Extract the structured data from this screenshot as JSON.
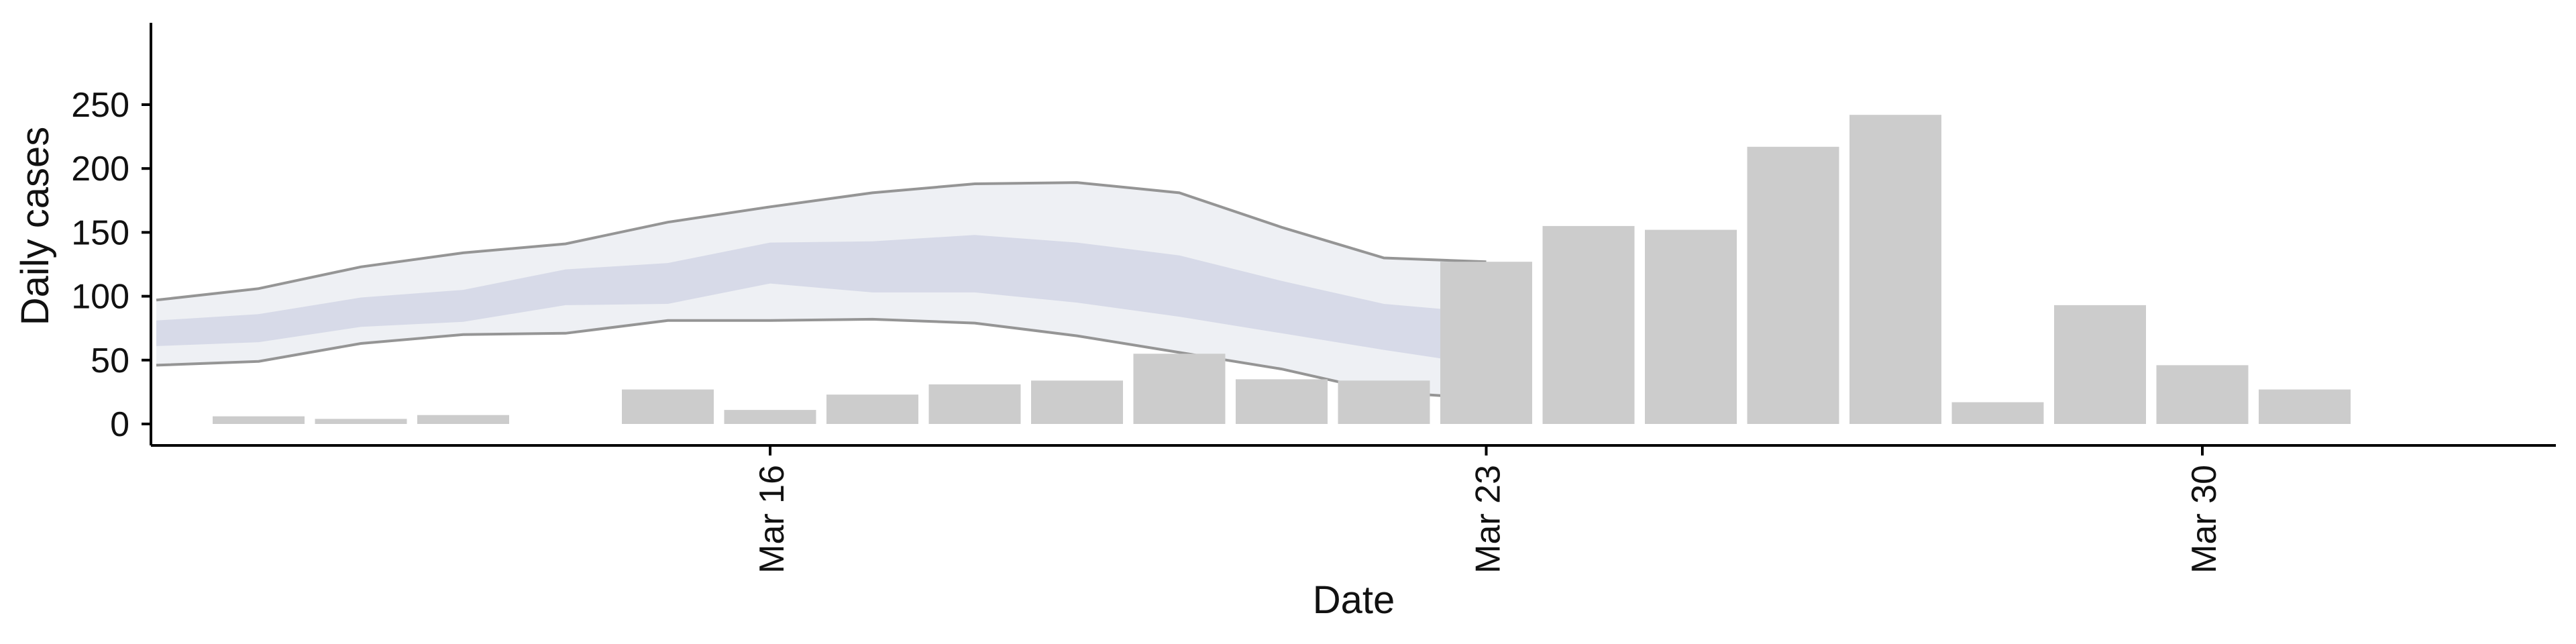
{
  "chart_data": {
    "type": "bar",
    "xlabel": "Date",
    "ylabel": "Daily cases",
    "ylim": [
      0,
      250
    ],
    "yticks": [
      0,
      50,
      100,
      150,
      200,
      250
    ],
    "x_tick_labels": [
      {
        "date": "2020-03-16",
        "label": "Mar 16"
      },
      {
        "date": "2020-03-23",
        "label": "Mar 23"
      },
      {
        "date": "2020-03-30",
        "label": "Mar 30"
      }
    ],
    "bars": {
      "dates": [
        "2020-03-11",
        "2020-03-12",
        "2020-03-13",
        "2020-03-14",
        "2020-03-15",
        "2020-03-16",
        "2020-03-17",
        "2020-03-18",
        "2020-03-19",
        "2020-03-20",
        "2020-03-21",
        "2020-03-22",
        "2020-03-23",
        "2020-03-24",
        "2020-03-25",
        "2020-03-26",
        "2020-03-27",
        "2020-03-28",
        "2020-03-29",
        "2020-03-30",
        "2020-03-31",
        "2020-04-01"
      ],
      "values": [
        6,
        4,
        7,
        0,
        27,
        11,
        23,
        31,
        34,
        55,
        35,
        34,
        127,
        155,
        152,
        217,
        242,
        17,
        93,
        46,
        27,
        0
      ]
    },
    "forecast_band": {
      "dates": [
        "2020-03-10",
        "2020-03-11",
        "2020-03-12",
        "2020-03-13",
        "2020-03-14",
        "2020-03-15",
        "2020-03-16",
        "2020-03-17",
        "2020-03-18",
        "2020-03-19",
        "2020-03-20",
        "2020-03-21",
        "2020-03-22",
        "2020-03-23"
      ],
      "outer_low": [
        46,
        49,
        63,
        70,
        71,
        81,
        81,
        82,
        79,
        69,
        56,
        43,
        25,
        20
      ],
      "outer_high": [
        97,
        106,
        123,
        134,
        141,
        158,
        170,
        181,
        188,
        189,
        181,
        154,
        130,
        127
      ],
      "inner_low": [
        61,
        64,
        76,
        80,
        93,
        94,
        110,
        103,
        103,
        95,
        84,
        71,
        58,
        46
      ],
      "inner_high": [
        81,
        86,
        99,
        105,
        121,
        126,
        142,
        143,
        148,
        142,
        132,
        112,
        94,
        87
      ]
    },
    "grid": false,
    "colors": {
      "bars": "#cccccc",
      "outer_band": "#e3e6ee",
      "inner_band": "#c8cde0",
      "band_edges": "#8f8f8f",
      "axis": "#000000"
    }
  }
}
